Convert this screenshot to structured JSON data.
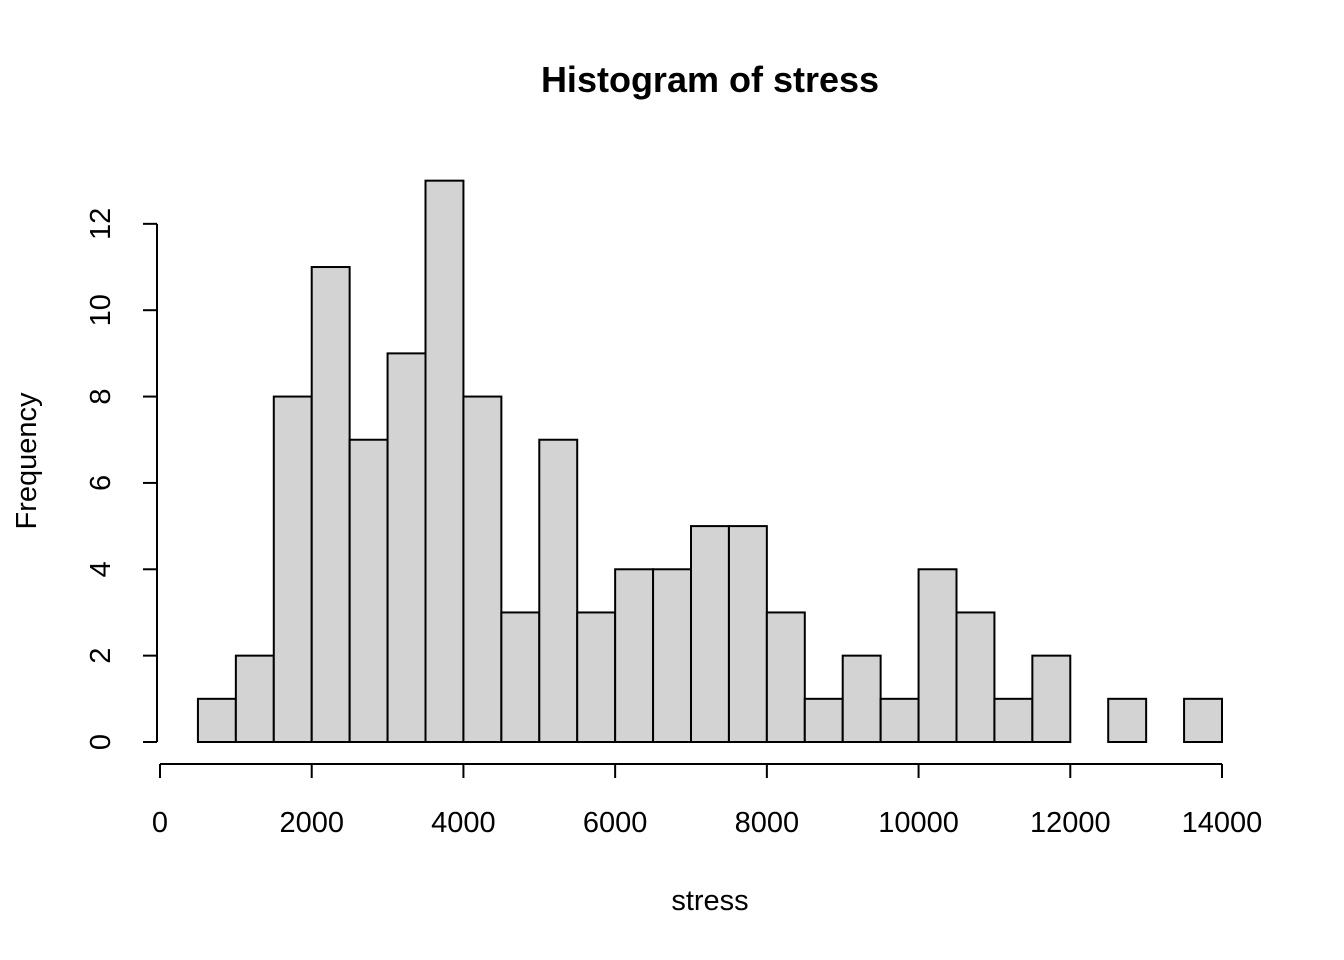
{
  "chart_data": {
    "type": "bar",
    "title": "Histogram of stress",
    "xlabel": "stress",
    "ylabel": "Frequency",
    "bin_width": 500,
    "bins": [
      {
        "start": 500,
        "end": 1000,
        "count": 1
      },
      {
        "start": 1000,
        "end": 1500,
        "count": 2
      },
      {
        "start": 1500,
        "end": 2000,
        "count": 8
      },
      {
        "start": 2000,
        "end": 2500,
        "count": 11
      },
      {
        "start": 2500,
        "end": 3000,
        "count": 7
      },
      {
        "start": 3000,
        "end": 3500,
        "count": 9
      },
      {
        "start": 3500,
        "end": 4000,
        "count": 13
      },
      {
        "start": 4000,
        "end": 4500,
        "count": 8
      },
      {
        "start": 4500,
        "end": 5000,
        "count": 3
      },
      {
        "start": 5000,
        "end": 5500,
        "count": 7
      },
      {
        "start": 5500,
        "end": 6000,
        "count": 3
      },
      {
        "start": 6000,
        "end": 6500,
        "count": 4
      },
      {
        "start": 6500,
        "end": 7000,
        "count": 4
      },
      {
        "start": 7000,
        "end": 7500,
        "count": 5
      },
      {
        "start": 7500,
        "end": 8000,
        "count": 5
      },
      {
        "start": 8000,
        "end": 8500,
        "count": 3
      },
      {
        "start": 8500,
        "end": 9000,
        "count": 1
      },
      {
        "start": 9000,
        "end": 9500,
        "count": 2
      },
      {
        "start": 9500,
        "end": 10000,
        "count": 1
      },
      {
        "start": 10000,
        "end": 10500,
        "count": 4
      },
      {
        "start": 10500,
        "end": 11000,
        "count": 3
      },
      {
        "start": 11000,
        "end": 11500,
        "count": 1
      },
      {
        "start": 11500,
        "end": 12000,
        "count": 2
      },
      {
        "start": 12000,
        "end": 12500,
        "count": 0
      },
      {
        "start": 12500,
        "end": 13000,
        "count": 1
      },
      {
        "start": 13000,
        "end": 13500,
        "count": 0
      },
      {
        "start": 13500,
        "end": 14000,
        "count": 1
      }
    ],
    "xlim": [
      0,
      14000
    ],
    "ylim": [
      0,
      13
    ],
    "x_ticks": [
      0,
      2000,
      4000,
      6000,
      8000,
      10000,
      12000,
      14000
    ],
    "y_ticks": [
      0,
      2,
      4,
      6,
      8,
      10,
      12
    ],
    "grid": false,
    "colors": {
      "bar_fill": "#d3d3d3",
      "bar_stroke": "#000000"
    }
  }
}
